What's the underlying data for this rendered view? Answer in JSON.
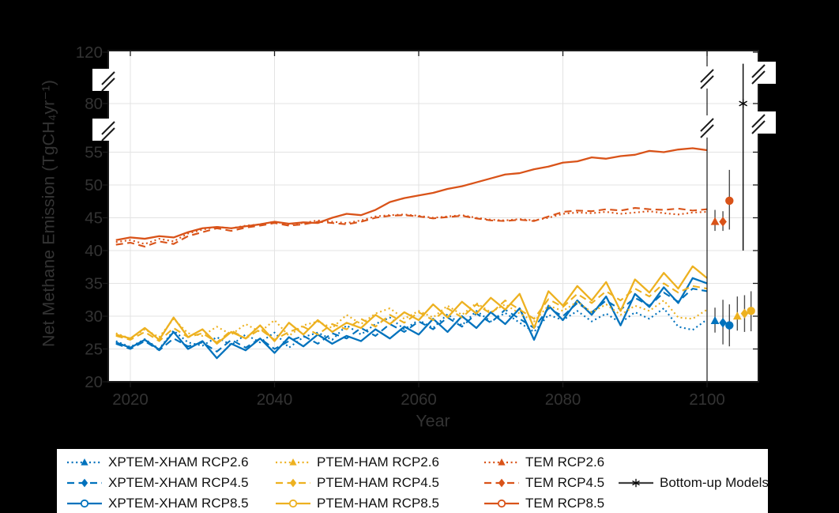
{
  "figure": {
    "background": "#000000",
    "plot_background": "#ffffff",
    "axis_color": "#1a1a1a",
    "grid_color": "#e3e3e3",
    "tick_text_color": "#333333",
    "whisker_color": "#4d4d4d",
    "palette": {
      "blue": "#0072BD",
      "yellow": "#EDB120",
      "red": "#D95319",
      "black": "#000000",
      "gray": "#404040"
    }
  },
  "axes": {
    "xlabel": "Year",
    "ylabel": "Net Methane Emission (TgCH₄yr⁻¹)",
    "x_ticks": [
      2020,
      2040,
      2060,
      2080,
      2100
    ],
    "y_ticks": [
      20,
      25,
      30,
      35,
      40,
      45,
      50,
      55,
      80,
      120
    ],
    "y_axis_breaks": "between 55-80 and 80-120",
    "separator_year": 2100
  },
  "chart_data": {
    "type": "line",
    "title": "",
    "xlabel": "Year",
    "ylabel": "Net Methane Emission (TgCH4 yr-1)",
    "xlim": [
      2017,
      2107
    ],
    "ylim_segments": [
      [
        20,
        56
      ],
      [
        80,
        120
      ]
    ],
    "grid": true,
    "legend_position": "below",
    "x": [
      2018,
      2020,
      2022,
      2024,
      2026,
      2028,
      2030,
      2032,
      2034,
      2036,
      2038,
      2040,
      2042,
      2044,
      2046,
      2048,
      2050,
      2052,
      2054,
      2056,
      2058,
      2060,
      2062,
      2064,
      2066,
      2068,
      2070,
      2072,
      2074,
      2076,
      2078,
      2080,
      2082,
      2084,
      2086,
      2088,
      2090,
      2092,
      2094,
      2096,
      2098,
      2100
    ],
    "series": [
      {
        "name": "XPTEM-XHAM RCP2.6",
        "color": "blue",
        "line": "dotted",
        "marker": "triangle",
        "values": [
          26.2,
          25.3,
          26.5,
          25.0,
          27.8,
          26.0,
          25.5,
          26.8,
          25.6,
          27.2,
          26.0,
          27.5,
          25.2,
          26.8,
          27.5,
          26.4,
          28.6,
          27.2,
          28.8,
          29.8,
          28.0,
          29.4,
          28.2,
          30.3,
          28.6,
          30.8,
          29.2,
          30.5,
          29.0,
          27.6,
          30.2,
          29.4,
          30.8,
          29.2,
          30.4,
          29.0,
          30.6,
          29.6,
          31.2,
          28.4,
          27.9,
          29.5
        ]
      },
      {
        "name": "XPTEM-XHAM RCP4.5",
        "color": "blue",
        "line": "dashed",
        "marker": "diamond",
        "values": [
          25.8,
          25.0,
          26.2,
          24.8,
          26.6,
          25.4,
          26.0,
          24.6,
          26.4,
          25.2,
          26.6,
          25.0,
          26.2,
          27.0,
          25.8,
          27.4,
          26.6,
          28.2,
          27.0,
          28.8,
          27.6,
          29.2,
          28.0,
          29.8,
          28.4,
          30.4,
          29.0,
          31.0,
          29.6,
          28.2,
          31.2,
          30.0,
          32.0,
          30.6,
          32.4,
          31.0,
          32.8,
          31.6,
          33.6,
          32.2,
          34.2,
          33.8
        ]
      },
      {
        "name": "XPTEM-XHAM RCP8.5",
        "color": "blue",
        "line": "solid",
        "marker": "circle",
        "values": [
          26.0,
          25.2,
          26.4,
          24.9,
          27.6,
          25.0,
          26.2,
          23.6,
          25.8,
          24.8,
          26.6,
          24.4,
          26.8,
          25.4,
          27.2,
          25.8,
          27.0,
          26.2,
          28.0,
          26.6,
          28.4,
          27.2,
          29.6,
          27.6,
          30.0,
          28.2,
          30.6,
          28.8,
          31.2,
          26.4,
          31.6,
          29.4,
          32.4,
          30.2,
          33.0,
          28.6,
          33.4,
          31.4,
          34.4,
          32.0,
          35.8,
          35.0
        ]
      },
      {
        "name": "PTEM-HAM RCP2.6",
        "color": "yellow",
        "line": "dotted",
        "marker": "triangle",
        "values": [
          27.4,
          26.6,
          28.0,
          26.8,
          29.6,
          27.4,
          27.0,
          28.4,
          27.2,
          28.8,
          27.6,
          29.4,
          27.0,
          28.6,
          29.2,
          28.2,
          30.2,
          28.8,
          30.4,
          31.2,
          29.6,
          30.8,
          29.8,
          31.6,
          30.2,
          32.0,
          30.6,
          31.8,
          30.4,
          29.2,
          31.6,
          30.8,
          32.2,
          30.6,
          31.8,
          30.2,
          31.6,
          30.8,
          32.4,
          29.8,
          29.6,
          31.0
        ]
      },
      {
        "name": "PTEM-HAM RCP4.5",
        "color": "yellow",
        "line": "dashed",
        "marker": "diamond",
        "values": [
          27.0,
          26.4,
          27.6,
          26.2,
          28.2,
          26.8,
          27.4,
          26.0,
          27.8,
          26.6,
          28.0,
          26.4,
          27.6,
          28.4,
          27.2,
          28.8,
          28.0,
          29.6,
          28.4,
          30.2,
          29.0,
          30.6,
          29.4,
          31.2,
          29.8,
          31.8,
          30.4,
          32.4,
          31.0,
          29.6,
          32.6,
          31.4,
          33.4,
          32.0,
          33.8,
          32.4,
          34.2,
          33.0,
          35.0,
          33.6,
          34.6,
          34.2
        ]
      },
      {
        "name": "PTEM-HAM RCP8.5",
        "color": "yellow",
        "line": "solid",
        "marker": "circle",
        "values": [
          27.2,
          26.6,
          28.2,
          26.4,
          29.8,
          26.8,
          28.0,
          25.8,
          27.6,
          26.6,
          28.6,
          26.2,
          29.0,
          27.2,
          29.4,
          27.6,
          29.0,
          28.2,
          30.2,
          28.8,
          30.6,
          29.4,
          31.8,
          29.8,
          32.2,
          30.4,
          32.8,
          31.0,
          33.4,
          28.2,
          33.8,
          31.6,
          34.6,
          32.4,
          35.2,
          30.8,
          35.6,
          33.6,
          36.6,
          34.2,
          37.6,
          35.8
        ]
      },
      {
        "name": "TEM RCP2.6",
        "color": "red",
        "line": "dotted",
        "marker": "triangle",
        "values": [
          41.3,
          41.6,
          41.0,
          41.8,
          41.4,
          42.6,
          43.2,
          43.6,
          43.4,
          43.8,
          44.0,
          44.4,
          44.0,
          44.2,
          44.6,
          44.4,
          44.2,
          44.6,
          45.2,
          45.4,
          45.5,
          45.3,
          45.0,
          45.2,
          45.4,
          45.0,
          44.7,
          44.6,
          44.8,
          44.6,
          45.0,
          45.6,
          45.8,
          45.7,
          45.9,
          45.6,
          45.8,
          46.0,
          45.7,
          45.5,
          45.8,
          45.9
        ]
      },
      {
        "name": "TEM RCP4.5",
        "color": "red",
        "line": "dashed",
        "marker": "diamond",
        "values": [
          40.9,
          41.2,
          40.6,
          41.4,
          41.0,
          42.2,
          42.8,
          43.4,
          43.0,
          43.5,
          43.8,
          44.2,
          43.8,
          44.0,
          44.4,
          44.2,
          44.0,
          44.4,
          45.0,
          45.3,
          45.4,
          45.2,
          44.9,
          45.1,
          45.3,
          44.9,
          44.6,
          44.5,
          44.7,
          44.5,
          45.2,
          45.9,
          46.1,
          46.0,
          46.3,
          46.1,
          46.5,
          46.3,
          46.2,
          46.4,
          46.1,
          46.3
        ]
      },
      {
        "name": "TEM RCP8.5",
        "color": "red",
        "line": "solid",
        "marker": "circle",
        "values": [
          41.6,
          42.0,
          41.8,
          42.2,
          42.0,
          42.8,
          43.4,
          43.6,
          43.4,
          43.7,
          44.0,
          44.4,
          44.1,
          44.3,
          44.2,
          45.0,
          45.6,
          45.4,
          46.2,
          47.4,
          48.0,
          48.4,
          48.8,
          49.4,
          49.8,
          50.4,
          51.0,
          51.6,
          51.8,
          52.4,
          52.8,
          53.4,
          53.6,
          54.2,
          54.0,
          54.4,
          54.6,
          55.2,
          55.0,
          55.4,
          55.6,
          55.3
        ]
      }
    ],
    "errorbars": [
      {
        "name": "XPTEM-XHAM RCP2.6",
        "x": 2101.1,
        "mean": 29.3,
        "lo": 27.5,
        "hi": 31.3,
        "color": "blue",
        "marker": "triangle"
      },
      {
        "name": "XPTEM-XHAM RCP4.5",
        "x": 2102.2,
        "mean": 29.0,
        "lo": 25.7,
        "hi": 32.5,
        "color": "blue",
        "marker": "diamond"
      },
      {
        "name": "XPTEM-XHAM RCP8.5",
        "x": 2103.1,
        "mean": 28.6,
        "lo": 25.4,
        "hi": 31.8,
        "color": "blue",
        "marker": "circle"
      },
      {
        "name": "PTEM-HAM RCP2.6",
        "x": 2104.2,
        "mean": 30.0,
        "lo": 27.8,
        "hi": 33.0,
        "color": "yellow",
        "marker": "triangle"
      },
      {
        "name": "PTEM-HAM RCP4.5",
        "x": 2105.2,
        "mean": 30.4,
        "lo": 27.6,
        "hi": 33.2,
        "color": "yellow",
        "marker": "diamond"
      },
      {
        "name": "PTEM-HAM RCP8.5",
        "x": 2106.1,
        "mean": 30.8,
        "lo": 27.7,
        "hi": 33.8,
        "color": "yellow",
        "marker": "circle"
      },
      {
        "name": "TEM RCP2.6",
        "x": 2101.1,
        "mean": 44.4,
        "lo": 43.0,
        "hi": 46.2,
        "color": "red",
        "marker": "triangle"
      },
      {
        "name": "TEM RCP4.5",
        "x": 2102.2,
        "mean": 44.4,
        "lo": 43.0,
        "hi": 46.0,
        "color": "red",
        "marker": "diamond"
      },
      {
        "name": "TEM RCP8.5",
        "x": 2103.1,
        "mean": 47.6,
        "lo": 43.2,
        "hi": 52.3,
        "color": "red",
        "marker": "circle"
      },
      {
        "name": "Bottom-up Models",
        "x": 2105.0,
        "mean": 80,
        "lo": 40,
        "hi": 111,
        "color": "black",
        "marker": "asterisk"
      }
    ]
  },
  "legend": {
    "items": [
      {
        "label": "XPTEM-XHAM RCP2.6",
        "color": "blue",
        "line": "dotted",
        "marker": "triangle"
      },
      {
        "label": "XPTEM-XHAM RCP4.5",
        "color": "blue",
        "line": "dashed",
        "marker": "diamond"
      },
      {
        "label": "XPTEM-XHAM RCP8.5",
        "color": "blue",
        "line": "solid",
        "marker": "circle"
      },
      {
        "label": "PTEM-HAM RCP2.6",
        "color": "yellow",
        "line": "dotted",
        "marker": "triangle"
      },
      {
        "label": "PTEM-HAM RCP4.5",
        "color": "yellow",
        "line": "dashed",
        "marker": "diamond"
      },
      {
        "label": "PTEM-HAM RCP8.5",
        "color": "yellow",
        "line": "solid",
        "marker": "circle"
      },
      {
        "label": "TEM RCP2.6",
        "color": "red",
        "line": "dotted",
        "marker": "triangle"
      },
      {
        "label": "TEM RCP4.5",
        "color": "red",
        "line": "dashed",
        "marker": "diamond"
      },
      {
        "label": "TEM RCP8.5",
        "color": "red",
        "line": "solid",
        "marker": "circle"
      },
      {
        "label": "Bottom-up Models",
        "color": "gray",
        "line": "solid",
        "marker": "asterisk"
      }
    ]
  }
}
